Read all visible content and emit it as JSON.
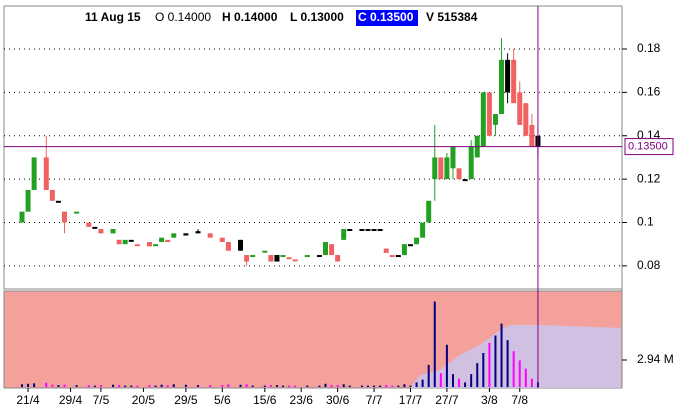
{
  "chart_data": {
    "type": "candlestick",
    "header": {
      "date": "11 Aug 15",
      "open": "O 0.14000",
      "high": "H 0.14000",
      "low": "L 0.13000",
      "close": "C 0.13500",
      "volume": "V 515384"
    },
    "categories": [
      null,
      "21/4",
      null,
      null,
      null,
      null,
      null,
      null,
      "29/4",
      null,
      null,
      null,
      null,
      "7/5",
      null,
      null,
      null,
      null,
      null,
      null,
      "20/5",
      null,
      null,
      null,
      null,
      null,
      null,
      "29/5",
      null,
      null,
      null,
      null,
      null,
      "5/6",
      null,
      null,
      null,
      null,
      null,
      null,
      "15/6",
      null,
      null,
      null,
      null,
      null,
      "23/6",
      null,
      null,
      null,
      null,
      null,
      "30/6",
      null,
      null,
      null,
      null,
      null,
      "7/7",
      null,
      null,
      null,
      null,
      null,
      "17/7",
      null,
      null,
      null,
      null,
      null,
      "27/7",
      null,
      null,
      null,
      null,
      null,
      null,
      "3/8",
      null,
      null,
      null,
      null,
      "7/8",
      null,
      null,
      null
    ],
    "open": [
      0.1,
      0.105,
      0.115,
      null,
      0.13,
      0.115,
      0.11,
      0.105,
      null,
      0.105,
      null,
      0.1,
      0.098,
      0.097,
      null,
      0.095,
      0.092,
      0.09,
      0.092,
      0.09,
      null,
      0.091,
      0.09,
      0.091,
      0.091,
      0.093,
      null,
      0.094,
      null,
      0.096,
      null,
      0.095,
      null,
      0.093,
      0.091,
      null,
      0.092,
      0.085,
      0.085,
      null,
      0.087,
      0.085,
      0.085,
      0.085,
      0.084,
      0.083,
      null,
      0.085,
      null,
      0.085,
      0.085,
      0.09,
      0.085,
      0.092,
      0.097,
      null,
      0.097,
      0.097,
      0.097,
      0.097,
      0.088,
      0.085,
      0.085,
      0.085,
      0.09,
      0.09,
      0.093,
      0.1,
      0.12,
      0.13,
      0.12,
      0.125,
      0.125,
      0.12,
      0.12,
      0.13,
      0.135,
      0.16,
      0.145,
      0.15,
      0.16,
      0.175,
      0.16,
      0.155,
      0.145,
      0.14
    ],
    "high": [
      0.105,
      0.115,
      0.13,
      null,
      0.14,
      0.115,
      0.11,
      0.105,
      null,
      0.105,
      null,
      0.1,
      0.098,
      0.097,
      null,
      0.097,
      0.092,
      0.092,
      0.092,
      0.09,
      null,
      0.091,
      0.09,
      0.093,
      0.092,
      0.095,
      null,
      0.095,
      null,
      0.097,
      null,
      0.095,
      null,
      0.093,
      0.091,
      null,
      0.092,
      0.085,
      0.085,
      null,
      0.087,
      0.085,
      0.085,
      0.085,
      0.084,
      0.083,
      null,
      0.085,
      null,
      0.085,
      0.091,
      0.09,
      0.085,
      0.097,
      0.097,
      null,
      0.097,
      0.097,
      0.097,
      0.097,
      0.088,
      0.085,
      0.085,
      0.09,
      0.09,
      0.093,
      0.1,
      0.11,
      0.145,
      0.13,
      0.132,
      0.135,
      0.125,
      0.12,
      0.138,
      0.14,
      0.16,
      0.16,
      0.15,
      0.185,
      0.178,
      0.18,
      0.165,
      0.155,
      0.15,
      0.14
    ],
    "low": [
      0.1,
      0.105,
      0.115,
      null,
      0.115,
      0.11,
      0.11,
      0.095,
      null,
      0.105,
      null,
      0.098,
      0.098,
      0.095,
      null,
      0.095,
      0.09,
      0.09,
      0.092,
      0.09,
      null,
      0.089,
      0.09,
      0.091,
      0.091,
      0.093,
      null,
      0.094,
      null,
      0.095,
      null,
      0.093,
      null,
      0.091,
      0.087,
      null,
      0.087,
      0.08,
      0.085,
      null,
      0.087,
      0.082,
      0.082,
      0.085,
      0.084,
      0.083,
      null,
      0.085,
      null,
      0.085,
      0.085,
      0.085,
      0.082,
      0.092,
      0.097,
      null,
      0.097,
      0.097,
      0.097,
      0.097,
      0.086,
      0.085,
      0.085,
      0.085,
      0.09,
      0.09,
      0.093,
      0.1,
      0.11,
      0.12,
      0.12,
      0.12,
      0.12,
      0.12,
      0.12,
      0.13,
      0.135,
      0.14,
      0.14,
      0.15,
      0.155,
      0.155,
      0.145,
      0.14,
      0.135,
      0.13
    ],
    "close": [
      0.105,
      0.115,
      0.13,
      null,
      0.115,
      0.11,
      0.11,
      0.1,
      null,
      0.105,
      null,
      0.098,
      0.098,
      0.095,
      null,
      0.097,
      0.09,
      0.092,
      0.092,
      0.09,
      null,
      0.089,
      0.09,
      0.093,
      0.092,
      0.095,
      null,
      0.095,
      null,
      0.095,
      null,
      0.093,
      null,
      0.091,
      0.087,
      null,
      0.087,
      0.082,
      0.085,
      null,
      0.087,
      0.082,
      0.082,
      0.085,
      0.084,
      0.083,
      null,
      0.085,
      null,
      0.085,
      0.091,
      0.085,
      0.082,
      0.097,
      0.097,
      null,
      0.097,
      0.097,
      0.097,
      0.097,
      0.086,
      0.085,
      0.085,
      0.09,
      0.09,
      0.093,
      0.1,
      0.11,
      0.13,
      0.12,
      0.13,
      0.135,
      0.12,
      0.12,
      0.135,
      0.14,
      0.16,
      0.14,
      0.15,
      0.175,
      0.175,
      0.155,
      0.145,
      0.14,
      0.135,
      0.135
    ],
    "volume": [
      300000,
      350000,
      400000,
      null,
      450000,
      250000,
      200000,
      250000,
      null,
      200000,
      null,
      200000,
      150000,
      200000,
      null,
      250000,
      200000,
      150000,
      150000,
      150000,
      null,
      200000,
      150000,
      250000,
      200000,
      300000,
      null,
      250000,
      null,
      200000,
      null,
      200000,
      null,
      200000,
      300000,
      null,
      250000,
      300000,
      150000,
      null,
      150000,
      200000,
      200000,
      150000,
      150000,
      150000,
      null,
      150000,
      null,
      150000,
      350000,
      200000,
      200000,
      300000,
      150000,
      null,
      150000,
      150000,
      150000,
      150000,
      200000,
      150000,
      150000,
      300000,
      150000,
      500000,
      800000,
      2400000,
      9300000,
      1500000,
      4600000,
      1400000,
      900000,
      500000,
      1400000,
      2600000,
      3700000,
      4800000,
      5600000,
      6900000,
      5100000,
      3900000,
      2900000,
      2000000,
      900000,
      515384
    ],
    "ylim": [
      0.0698,
      0.1989
    ],
    "yticks": [
      0.08,
      0.1,
      0.12,
      0.14,
      0.16,
      0.18
    ],
    "vlim": [
      0,
      10340000
    ],
    "vticks": [
      {
        "value": 2940000,
        "label": "2.94 M"
      }
    ],
    "crosshair": {
      "value": 0.135,
      "label": "0.13500"
    },
    "colors": {
      "up": "#22a022",
      "down": "#f06262",
      "flat": "#000000",
      "vol_up": "#000080",
      "vol_down": "#ff00ff",
      "crosshair": "#800080",
      "volume_bg": "#f4a19c"
    },
    "grid": true
  }
}
